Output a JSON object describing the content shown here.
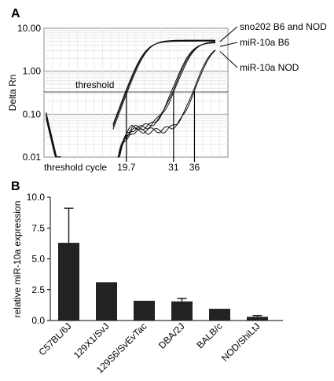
{
  "chart_data": [
    {
      "panel_label": "A",
      "type": "line",
      "ylabel": "Delta Rn",
      "yscale": "log",
      "ylim": [
        0.01,
        10
      ],
      "yticks": [
        "0.01",
        "0.10",
        "1.00",
        "10.00"
      ],
      "xlim": [
        0,
        44
      ],
      "grid": true,
      "threshold": {
        "label": "threshold",
        "value": 0.33
      },
      "threshold_cycle": {
        "label": "threshold cycle",
        "ticks": [
          {
            "label": "19.7",
            "x": 19.7
          },
          {
            "label": "31",
            "x": 31
          },
          {
            "label": "36",
            "x": 36
          }
        ]
      },
      "annotations": [
        "sno202 B6 and NOD",
        "miR-10a B6",
        "miR-10a NOD"
      ],
      "series": [
        {
          "name": "sno202 B6 and NOD",
          "ct": 19.7,
          "plateau": 5.0,
          "k": 0.62,
          "baseline": 0.0075,
          "copies": [
            -0.2,
            0.0,
            0.25
          ]
        },
        {
          "name": "miR-10a B6",
          "ct": 31.0,
          "plateau": 4.6,
          "k": 0.66,
          "baseline": 0.045,
          "copies": [
            -0.3,
            0.0,
            0.3
          ]
        },
        {
          "name": "miR-10a NOD",
          "ct": 36.0,
          "plateau": 4.0,
          "k": 0.7,
          "baseline": 0.04,
          "copies": [
            -0.2,
            0.1
          ]
        }
      ]
    },
    {
      "panel_label": "B",
      "type": "bar",
      "ylabel": "relative miR-10a expression",
      "ylim": [
        0,
        10
      ],
      "yticks": [
        "0.0",
        "2.5",
        "5.0",
        "7.5",
        "10.0"
      ],
      "categories": [
        "C57BL/6J",
        "129X1/SvJ",
        "129S6/SvEvTac",
        "DBA/2J",
        "BALB/c",
        "NOD/ShiLtJ"
      ],
      "values": [
        6.3,
        3.1,
        1.6,
        1.55,
        0.95,
        0.3
      ],
      "errors": [
        2.8,
        0,
        0,
        0.25,
        0,
        0.1
      ],
      "bar_color": "#222222"
    }
  ]
}
